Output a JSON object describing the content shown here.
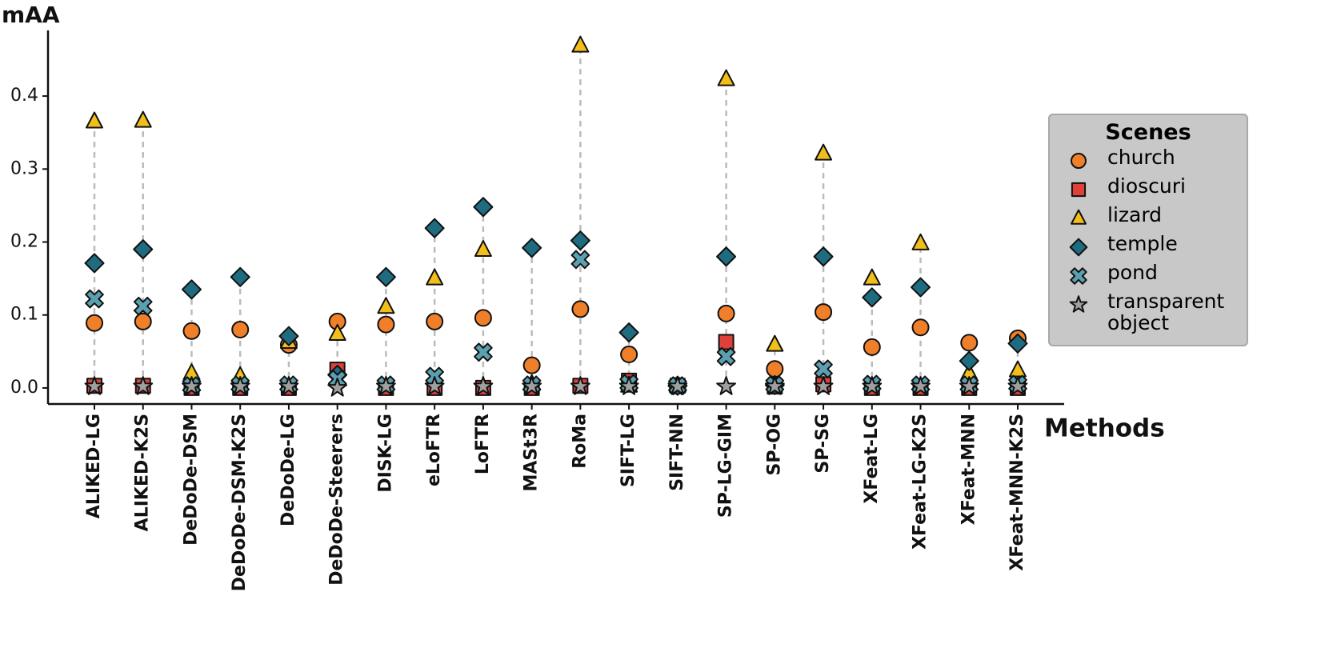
{
  "chart_data": {
    "type": "scatter",
    "y_label": "mAA",
    "x_label": "Methods",
    "categories": [
      "ALIKED-LG",
      "ALIKED-K2S",
      "DeDoDe-DSM",
      "DeDoDe-DSM-K2S",
      "DeDoDe-LG",
      "DeDoDe-Steerers",
      "DISK-LG",
      "eLoFTR",
      "LoFTR",
      "MASt3R",
      "RoMa",
      "SIFT-LG",
      "SIFT-NN",
      "SP-LG-GIM",
      "SP-OG",
      "SP-SG",
      "XFeat-LG",
      "XFeat-LG-K2S",
      "XFeat-MNN",
      "XFeat-MNN-K2S"
    ],
    "series": [
      {
        "name": "church",
        "color": "#f07f2a",
        "marker": "circle",
        "values": [
          0.089,
          0.091,
          0.078,
          0.08,
          0.059,
          0.091,
          0.087,
          0.091,
          0.096,
          0.031,
          0.108,
          0.046,
          0.003,
          0.102,
          0.026,
          0.104,
          0.056,
          0.083,
          0.062,
          0.068
        ]
      },
      {
        "name": "dioscuri",
        "color": "#e0403a",
        "marker": "square",
        "values": [
          0.003,
          0.003,
          0.0,
          0.0,
          0.0,
          0.025,
          0.0,
          0.0,
          0.0,
          0.0,
          0.003,
          0.01,
          0.003,
          0.063,
          0.002,
          0.005,
          0.0,
          0.0,
          0.0,
          0.0
        ]
      },
      {
        "name": "lizard",
        "color": "#f2bf1a",
        "marker": "triangle",
        "values": [
          0.365,
          0.366,
          0.02,
          0.016,
          0.063,
          0.074,
          0.111,
          0.15,
          0.189,
          0.005,
          0.469,
          0.003,
          0.003,
          0.423,
          0.059,
          0.321,
          0.15,
          0.198,
          0.02,
          0.024
        ]
      },
      {
        "name": "temple",
        "color": "#1f6b80",
        "marker": "diamond",
        "values": [
          0.171,
          0.19,
          0.135,
          0.152,
          0.071,
          0.018,
          0.152,
          0.219,
          0.248,
          0.192,
          0.202,
          0.076,
          0.003,
          0.18,
          0.004,
          0.18,
          0.124,
          0.138,
          0.037,
          0.061
        ]
      },
      {
        "name": "pond",
        "color": "#5aa0b0",
        "marker": "x",
        "values": [
          0.122,
          0.112,
          0.003,
          0.004,
          0.004,
          0.012,
          0.004,
          0.016,
          0.049,
          0.004,
          0.176,
          0.006,
          0.003,
          0.043,
          0.004,
          0.026,
          0.005,
          0.004,
          0.004,
          0.005
        ]
      },
      {
        "name": "transparent object",
        "color": "#a0a0a0",
        "marker": "star",
        "values": [
          0.002,
          0.002,
          0.002,
          0.002,
          0.002,
          0.0,
          0.002,
          0.002,
          0.002,
          0.002,
          0.002,
          0.002,
          0.002,
          0.002,
          0.002,
          0.002,
          0.002,
          0.002,
          0.002,
          0.002
        ]
      }
    ],
    "ylim": [
      -0.022,
      0.49
    ],
    "yticks": [
      {
        "value": 0,
        "label": "0.0"
      },
      0.1,
      0.2,
      0.3,
      0.4
    ],
    "legend": {
      "title": "Scenes",
      "loc": "center right"
    },
    "range_lines": true
  }
}
